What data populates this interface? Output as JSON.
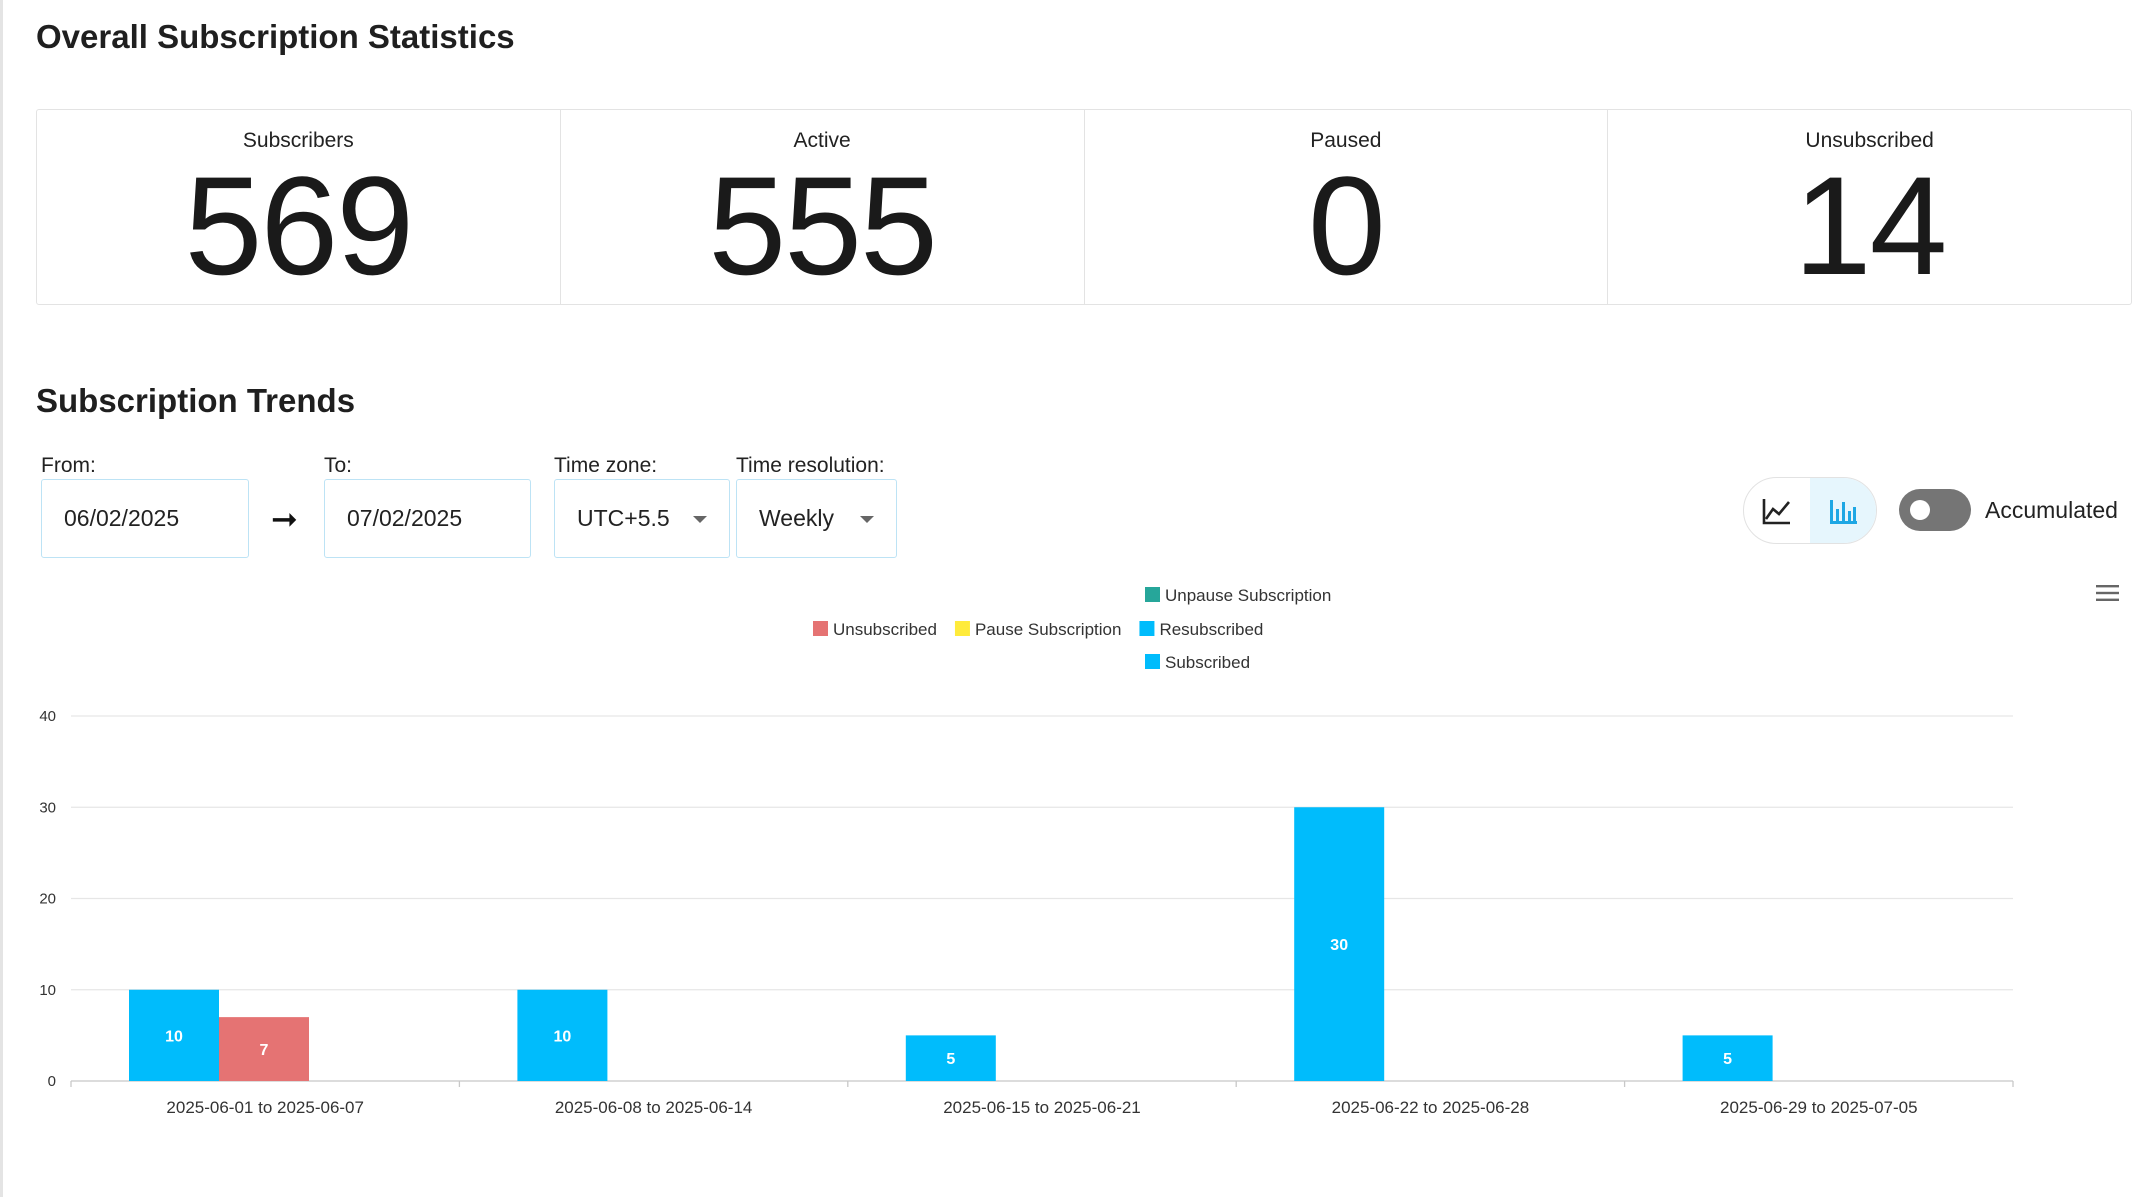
{
  "stats": {
    "title": "Overall Subscription Statistics",
    "cards": [
      {
        "label": "Subscribers",
        "value": "569"
      },
      {
        "label": "Active",
        "value": "555"
      },
      {
        "label": "Paused",
        "value": "0"
      },
      {
        "label": "Unsubscribed",
        "value": "14"
      }
    ]
  },
  "trends": {
    "title": "Subscription Trends",
    "from": {
      "label": "From:",
      "value": "06/02/2025"
    },
    "to": {
      "label": "To:",
      "value": "07/02/2025"
    },
    "timezone": {
      "label": "Time zone:",
      "value": "UTC+5.5"
    },
    "resolution": {
      "label": "Time resolution:",
      "value": "Weekly"
    },
    "arrow": "➞",
    "accumulated_label": "Accumulated",
    "accumulated_on": false,
    "view_mode": "bar",
    "icons": {
      "line": "line-chart-icon",
      "bar": "bar-chart-icon",
      "menu": "hamburger-menu-icon"
    }
  },
  "chart_data": {
    "type": "bar",
    "categories": [
      "2025-06-01 to 2025-06-07",
      "2025-06-08 to 2025-06-14",
      "2025-06-15 to 2025-06-21",
      "2025-06-22 to 2025-06-28",
      "2025-06-29 to 2025-07-05"
    ],
    "series": [
      {
        "name": "Subscribed",
        "color": "#00bcfc",
        "values": [
          10,
          10,
          5,
          30,
          5
        ]
      },
      {
        "name": "Unsubscribed",
        "color": "#e57373",
        "values": [
          7,
          0,
          0,
          0,
          0
        ]
      },
      {
        "name": "Pause Subscription",
        "color": "#ffeb3b",
        "values": [
          0,
          0,
          0,
          0,
          0
        ]
      },
      {
        "name": "Unpause Subscription",
        "color": "#26a69a",
        "values": [
          0,
          0,
          0,
          0,
          0
        ]
      },
      {
        "name": "Resubscribed",
        "color": "#00bcfc",
        "values": [
          0,
          0,
          0,
          0,
          0
        ]
      }
    ],
    "legend": {
      "placement": "top-center",
      "rows": [
        [
          "Unpause Subscription"
        ],
        [
          "Unsubscribed",
          "Pause Subscription",
          "Resubscribed"
        ],
        [
          "Subscribed"
        ]
      ]
    },
    "yticks": [
      0,
      10,
      20,
      30,
      40
    ],
    "ylim": [
      0,
      40
    ],
    "grid": true,
    "title": "",
    "xlabel": "",
    "ylabel": ""
  }
}
